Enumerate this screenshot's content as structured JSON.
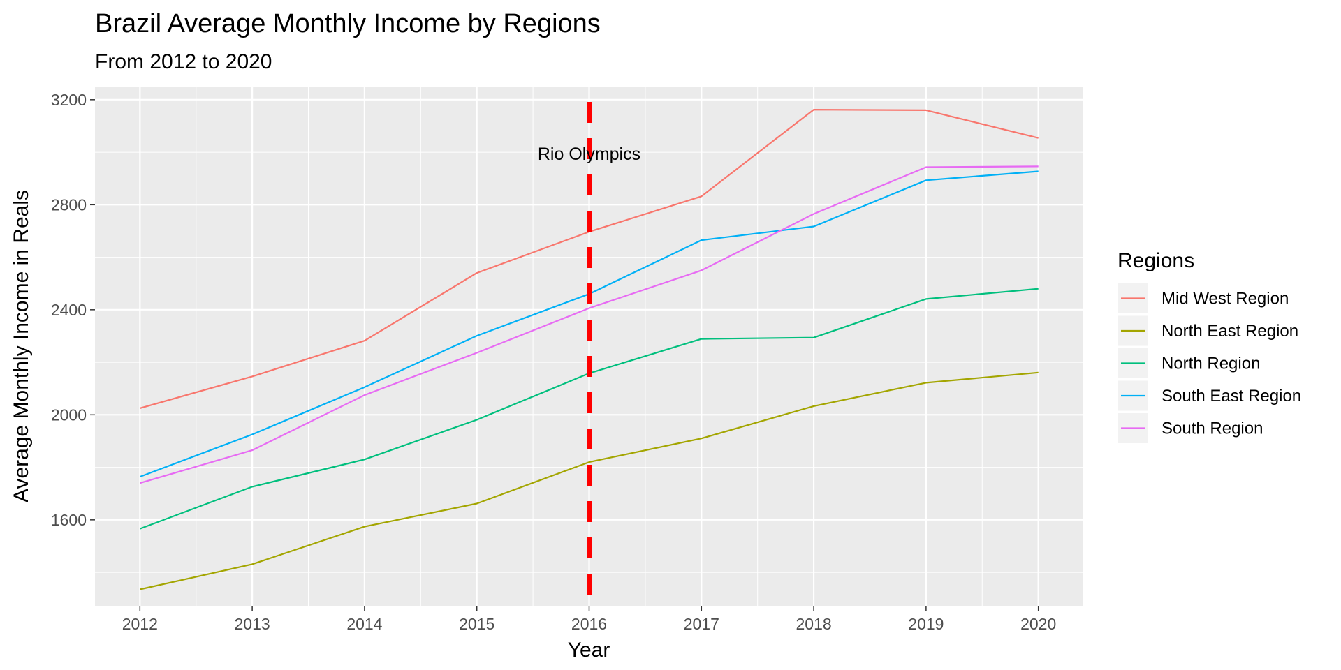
{
  "chart_data": {
    "type": "line",
    "title": "Brazil Average Monthly Income by Regions",
    "subtitle": "From 2012 to 2020",
    "xlabel": "Year",
    "ylabel": "Average Monthly Income in Reals",
    "x": [
      2012,
      2013,
      2014,
      2015,
      2016,
      2017,
      2018,
      2019,
      2020
    ],
    "xlim": [
      2011.6,
      2020.4
    ],
    "ylim": [
      1270,
      3250
    ],
    "y_ticks": [
      1600,
      2000,
      2400,
      2800,
      3200
    ],
    "grid": true,
    "legend": {
      "title": "Regions",
      "placement": "right"
    },
    "series": [
      {
        "name": "Mid West Region",
        "color": "#F8766D",
        "values": [
          2025,
          2146,
          2282,
          2540,
          2697,
          2832,
          3162,
          3160,
          3054
        ]
      },
      {
        "name": "North East Region",
        "color": "#A3A500",
        "values": [
          1335,
          1431,
          1574,
          1662,
          1820,
          1910,
          2033,
          2122,
          2161
        ]
      },
      {
        "name": "North Region",
        "color": "#00BF7D",
        "values": [
          1566,
          1726,
          1830,
          1981,
          2158,
          2289,
          2294,
          2441,
          2480
        ]
      },
      {
        "name": "South East Region",
        "color": "#00B0F6",
        "values": [
          1764,
          1925,
          2105,
          2301,
          2460,
          2665,
          2717,
          2893,
          2927
        ]
      },
      {
        "name": "South Region",
        "color": "#E76BF3",
        "values": [
          1740,
          1865,
          2075,
          2236,
          2406,
          2550,
          2765,
          2943,
          2946
        ]
      }
    ],
    "vline": {
      "x": 2016,
      "color": "#FF0000",
      "style": "dashed"
    },
    "annotation": {
      "text": "Rio Olympics",
      "x": 2016,
      "y": 2995
    }
  }
}
